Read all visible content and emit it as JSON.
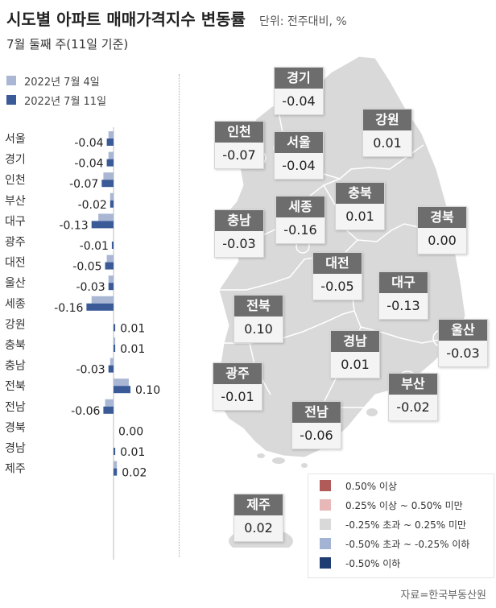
{
  "header": {
    "title": "시도별 아파트 매매가격지수 변동률",
    "unit": "단위: 전주대비, %",
    "subtitle": "7월 둘째 주(11일 기준)"
  },
  "source": "자료=한국부동산원",
  "colors": {
    "prev_week": "#a9b7d4",
    "this_week": "#3a5a98",
    "map_fill": "#d9d9d9",
    "map_stroke": "#ffffff",
    "label_header": "#6d6d6d"
  },
  "chart_data": {
    "type": "bar",
    "orientation": "horizontal",
    "categories": [
      "서울",
      "경기",
      "인천",
      "부산",
      "대구",
      "광주",
      "대전",
      "울산",
      "세종",
      "강원",
      "충북",
      "충남",
      "전북",
      "전남",
      "경북",
      "경남",
      "제주"
    ],
    "series": [
      {
        "name": "2022년 7월 4일",
        "values": [
          -0.03,
          -0.03,
          -0.06,
          -0.02,
          -0.09,
          0.0,
          -0.04,
          -0.03,
          -0.13,
          0.0,
          0.01,
          -0.02,
          0.09,
          -0.05,
          0.0,
          0.0,
          0.02
        ]
      },
      {
        "name": "2022년 7월 11일",
        "values": [
          -0.04,
          -0.04,
          -0.07,
          -0.02,
          -0.13,
          -0.01,
          -0.05,
          -0.03,
          -0.16,
          0.01,
          0.01,
          -0.03,
          0.1,
          -0.06,
          0.0,
          0.01,
          0.02
        ]
      }
    ],
    "value_labels": [
      "-0.04",
      "-0.04",
      "-0.07",
      "-0.02",
      "-0.13",
      "-0.01",
      "-0.05",
      "-0.03",
      "-0.16",
      "0.01",
      "0.01",
      "-0.03",
      "0.10",
      "-0.06",
      "0.00",
      "0.01",
      "0.02"
    ]
  },
  "map_labels": [
    {
      "region": "경기",
      "value": "-0.04"
    },
    {
      "region": "인천",
      "value": "-0.07"
    },
    {
      "region": "서울",
      "value": "-0.04"
    },
    {
      "region": "강원",
      "value": "0.01"
    },
    {
      "region": "충북",
      "value": "0.01"
    },
    {
      "region": "세종",
      "value": "-0.16"
    },
    {
      "region": "경북",
      "value": "0.00"
    },
    {
      "region": "충남",
      "value": "-0.03"
    },
    {
      "region": "대전",
      "value": "-0.05"
    },
    {
      "region": "대구",
      "value": "-0.13"
    },
    {
      "region": "전북",
      "value": "0.10"
    },
    {
      "region": "울산",
      "value": "-0.03"
    },
    {
      "region": "경남",
      "value": "0.01"
    },
    {
      "region": "광주",
      "value": "-0.01"
    },
    {
      "region": "부산",
      "value": "-0.02"
    },
    {
      "region": "전남",
      "value": "-0.06"
    },
    {
      "region": "제주",
      "value": "0.02"
    }
  ],
  "map_legend": [
    {
      "label": "0.50% 이상",
      "color": "#b15a5a"
    },
    {
      "label": "0.25% 이상 ~ 0.50% 미만",
      "color": "#e8b7b7"
    },
    {
      "label": "-0.25% 초과 ~ 0.25% 미만",
      "color": "#d9d9d9"
    },
    {
      "label": "-0.50% 초과 ~ -0.25% 이하",
      "color": "#a3b3d3"
    },
    {
      "label": "-0.50% 이하",
      "color": "#1f3c73"
    }
  ]
}
